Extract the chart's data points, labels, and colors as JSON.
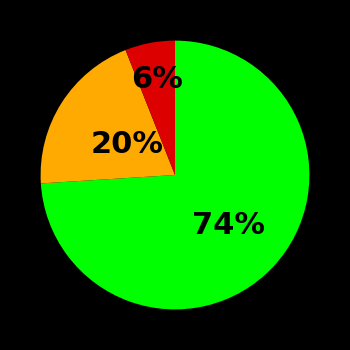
{
  "slices": [
    74,
    20,
    6
  ],
  "colors": [
    "#00ff00",
    "#ffaa00",
    "#dd0000"
  ],
  "labels": [
    "74%",
    "20%",
    "6%"
  ],
  "label_radii": [
    0.55,
    0.42,
    0.72
  ],
  "background_color": "#000000",
  "label_fontsize": 22,
  "label_fontweight": "bold",
  "startangle": 90,
  "figsize": [
    3.5,
    3.5
  ],
  "dpi": 100
}
